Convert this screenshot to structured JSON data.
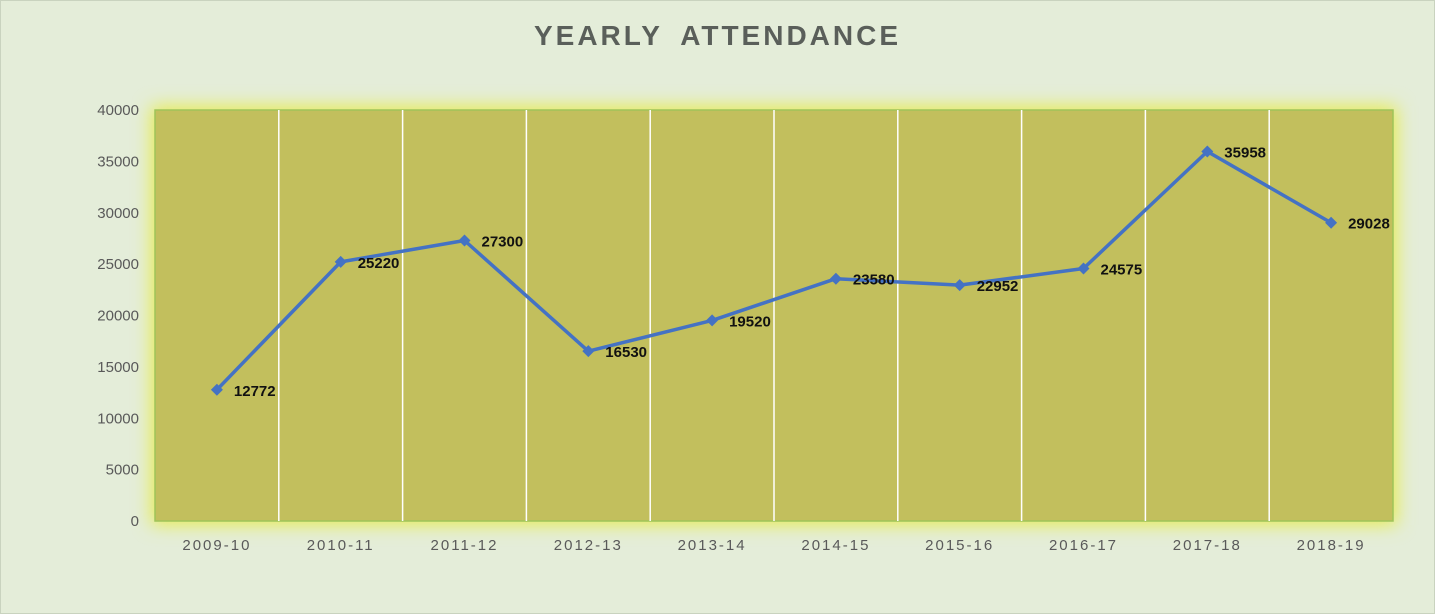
{
  "chart_data": {
    "type": "line",
    "title": "YEARLY  ATTENDANCE",
    "xlabel": "",
    "ylabel": "",
    "categories": [
      "2009-10",
      "2010-11",
      "2011-12",
      "2012-13",
      "2013-14",
      "2014-15",
      "2015-16",
      "2016-17",
      "2017-18",
      "2018-19"
    ],
    "series": [
      {
        "values": [
          12772,
          25220,
          27300,
          16530,
          19520,
          23580,
          22952,
          24575,
          35958,
          29028
        ]
      }
    ],
    "ylim": [
      0,
      40000
    ],
    "yticks": [
      0,
      5000,
      10000,
      15000,
      20000,
      25000,
      30000,
      35000,
      40000
    ],
    "grid": "vertical lines between categories",
    "data_labels": true,
    "colors": {
      "background": "#e4edd9",
      "plot_area": "#c2bf5d",
      "plot_glow": "#e6ec52",
      "line": "#4472c4",
      "gridline": "#ffffff"
    }
  }
}
